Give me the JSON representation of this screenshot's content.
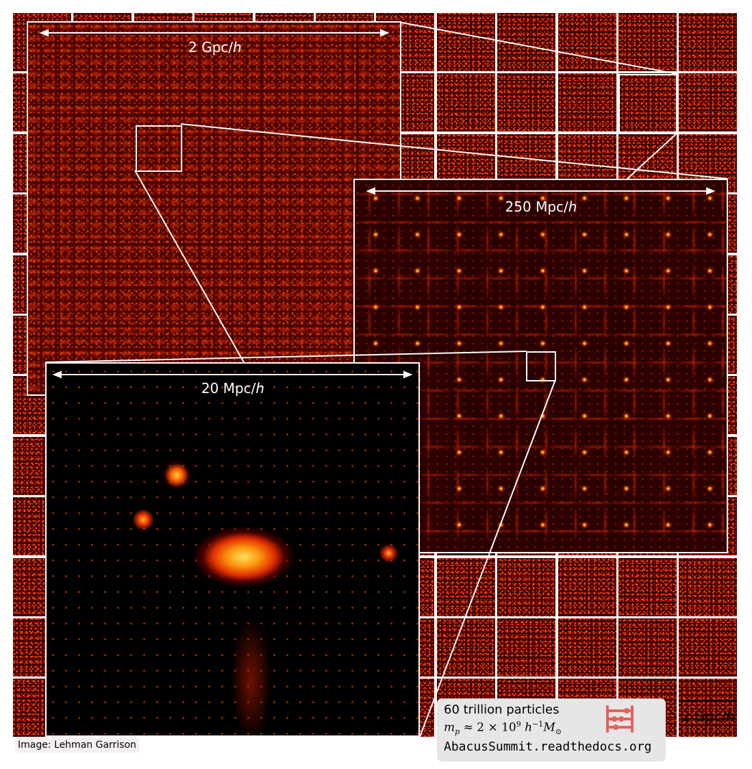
{
  "panels": {
    "large": {
      "scale_label": "2 Gpc/",
      "scale_unit": "h"
    },
    "medium": {
      "scale_label": "250 Mpc/",
      "scale_unit": "h"
    },
    "small": {
      "scale_label": "20 Mpc/",
      "scale_unit": "h"
    }
  },
  "info": {
    "particles": "60 trillion particles",
    "mass_prefix": "m",
    "mass_sub": "p",
    "mass_text": " ≈ 2 × 10",
    "mass_exp": "9",
    "mass_tail": " h",
    "mass_tail_exp": "−1",
    "mass_unit": "M",
    "mass_unit_sub": "⊙",
    "url": "AbacusSummit.readthedocs.org",
    "logo_icon": "abacus-icon",
    "logo_color": "#e8605a"
  },
  "credit": "Image: Lehman Garrison",
  "reference_scale": {
    "label": "2 Gpc/",
    "unit": "h"
  },
  "colors": {
    "frame": "#ffffff",
    "tile_background": "#3a0000",
    "info_background": "#e6e6e6"
  }
}
